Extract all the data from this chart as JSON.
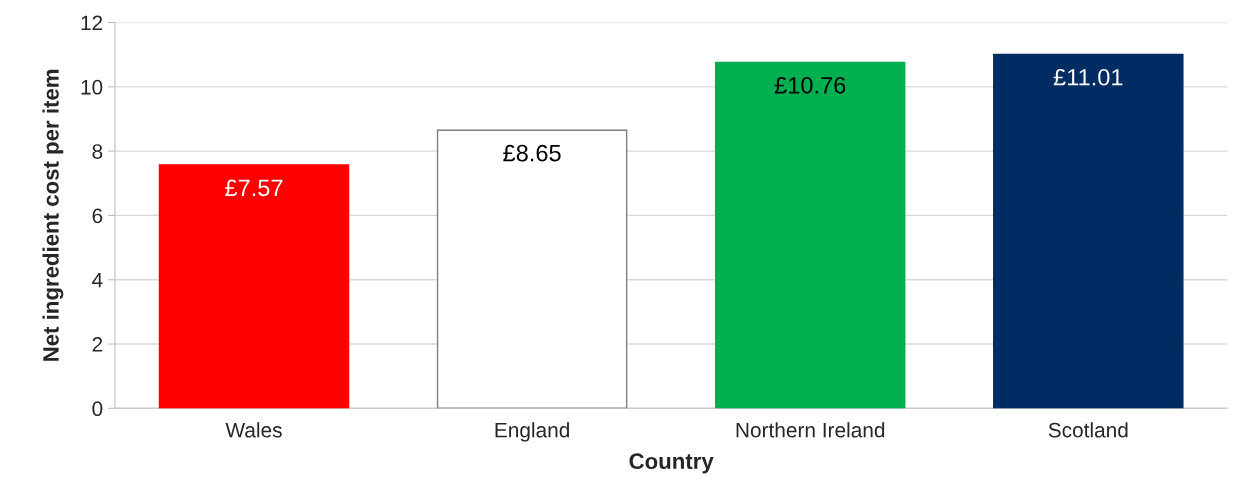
{
  "chart_data": {
    "type": "bar",
    "xlabel": "Country",
    "ylabel": "Net ingredient cost per item",
    "categories": [
      "Wales",
      "England",
      "Northern Ireland",
      "Scotland"
    ],
    "values": [
      7.57,
      8.65,
      10.76,
      11.01
    ],
    "colors": [
      "#ff0000",
      "#ffffff",
      "#00b050",
      "#002c64"
    ],
    "value_labels": [
      "£7.57",
      "£8.65",
      "£10.76",
      "£11.01"
    ],
    "ylim": [
      0,
      12
    ],
    "yticks": [
      0,
      2,
      4,
      6,
      8,
      10,
      12
    ],
    "grid": "y",
    "legend": false
  }
}
